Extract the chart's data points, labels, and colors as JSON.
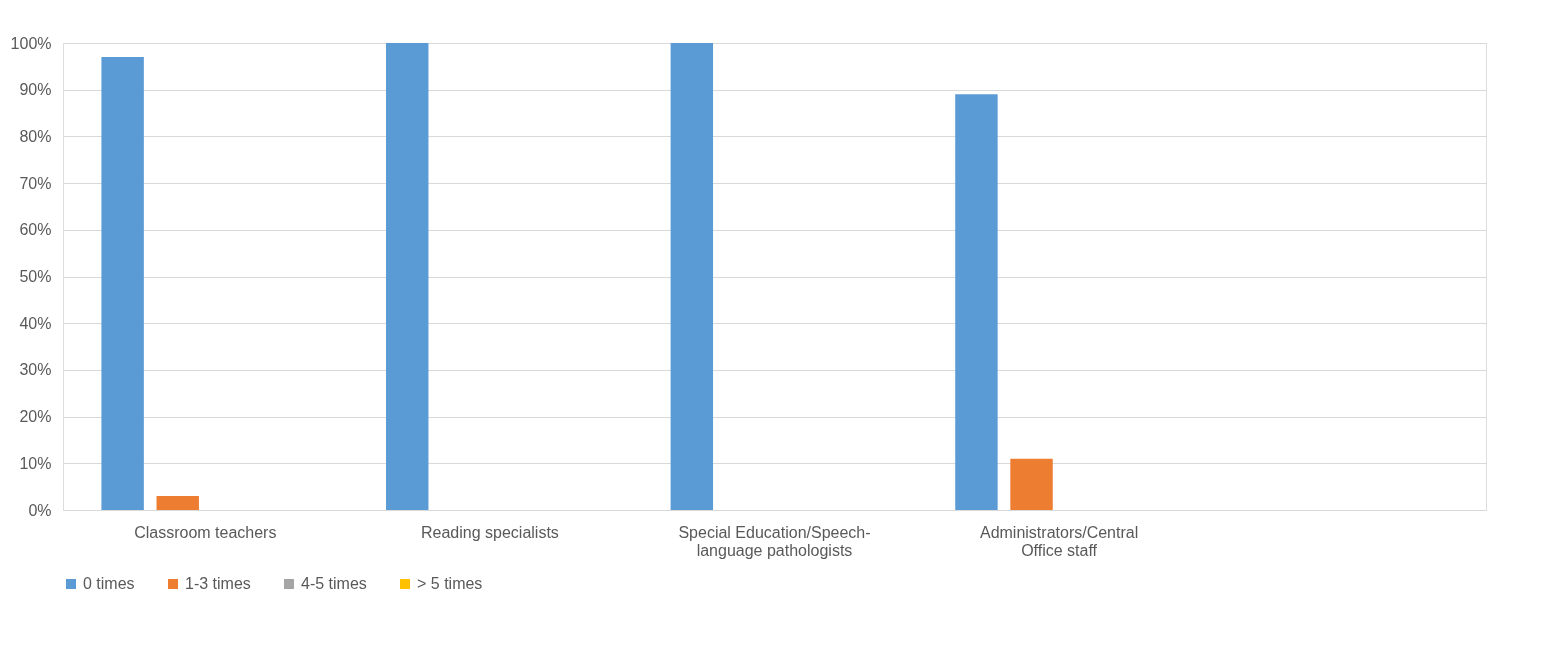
{
  "chart_data": {
    "type": "bar",
    "categories": [
      "Classroom teachers",
      "Reading specialists",
      "Special Education/Speech-\nlanguage pathologists",
      "Administrators/Central\nOffice staff",
      null
    ],
    "series": [
      {
        "name": "0 times",
        "color": "#5b9bd5",
        "values": [
          97,
          100,
          100,
          89,
          null
        ]
      },
      {
        "name": "1-3 times",
        "color": "#ed7d31",
        "values": [
          3,
          0,
          0,
          11,
          null
        ]
      },
      {
        "name": "4-5 times",
        "color": "#a5a5a5",
        "values": [
          0,
          0,
          0,
          0,
          null
        ]
      },
      {
        "name": "> 5 times",
        "color": "#ffc000",
        "values": [
          0,
          0,
          0,
          0,
          null
        ]
      }
    ],
    "ylim": [
      0,
      100
    ],
    "yticks": [
      {
        "value": 0,
        "label": "0%"
      },
      {
        "value": 10,
        "label": "10%"
      },
      {
        "value": 20,
        "label": "20%"
      },
      {
        "value": 30,
        "label": "30%"
      },
      {
        "value": 40,
        "label": "40%"
      },
      {
        "value": 50,
        "label": "50%"
      },
      {
        "value": 60,
        "label": "60%"
      },
      {
        "value": 70,
        "label": "70%"
      },
      {
        "value": 80,
        "label": "80%"
      },
      {
        "value": 90,
        "label": "90%"
      },
      {
        "value": 100,
        "label": "100%"
      }
    ],
    "grid": "y",
    "legend": "bottom"
  }
}
